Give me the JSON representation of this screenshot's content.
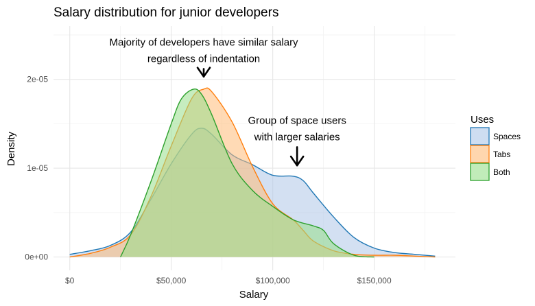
{
  "chart_data": {
    "type": "area",
    "title": "Salary distribution for junior developers",
    "xlabel": "Salary",
    "ylabel": "Density",
    "xlim": [
      -8000,
      190000
    ],
    "ylim": [
      -1.5e-06,
      2.6e-05
    ],
    "x_ticks": [
      {
        "value": 0,
        "label": "$0"
      },
      {
        "value": 50000,
        "label": "$50,000"
      },
      {
        "value": 100000,
        "label": "$100,000"
      },
      {
        "value": 150000,
        "label": "$150,000"
      }
    ],
    "y_ticks": [
      {
        "value": 0,
        "label": "0e+00"
      },
      {
        "value": 1e-05,
        "label": "1e-05"
      },
      {
        "value": 2e-05,
        "label": "2e-05"
      }
    ],
    "grid": true,
    "legend": {
      "title": "Uses",
      "position": "right",
      "entries": [
        "Spaces",
        "Tabs",
        "Both"
      ]
    },
    "colors": {
      "Spaces": {
        "line": "#1f77b4",
        "fill": "#aec7e8"
      },
      "Tabs": {
        "line": "#ff7f0e",
        "fill": "#ffbb78"
      },
      "Both": {
        "line": "#2ca02c",
        "fill": "#98df8a"
      }
    },
    "series": [
      {
        "name": "Spaces",
        "x": [
          0,
          10000,
          20000,
          30000,
          40000,
          50000,
          60000,
          65000,
          70000,
          80000,
          90000,
          100000,
          110000,
          115000,
          120000,
          130000,
          140000,
          150000,
          160000,
          170000,
          180000
        ],
        "y": [
          3e-07,
          7e-07,
          1.3e-06,
          2.8e-06,
          6.5e-06,
          1.05e-05,
          1.38e-05,
          1.45e-05,
          1.38e-05,
          1.15e-05,
          1.04e-05,
          9.2e-06,
          9.1e-06,
          8.6e-06,
          7.2e-06,
          4.5e-06,
          2.2e-06,
          1e-06,
          5e-07,
          3e-07,
          1e-07
        ]
      },
      {
        "name": "Tabs",
        "x": [
          0,
          10000,
          20000,
          30000,
          40000,
          50000,
          60000,
          66000,
          70000,
          80000,
          90000,
          100000,
          110000,
          115000,
          120000,
          130000,
          140000,
          150000,
          160000,
          170000,
          180000
        ],
        "y": [
          0.0,
          4e-07,
          1.1e-06,
          2.5e-06,
          6.8e-06,
          1.25e-05,
          1.78e-05,
          1.89e-05,
          1.86e-05,
          1.52e-05,
          1.02e-05,
          6e-06,
          4.2e-06,
          3e-06,
          1.8e-06,
          7e-07,
          3e-07,
          2e-07,
          2e-07,
          1e-07,
          0.0
        ]
      },
      {
        "name": "Both",
        "x": [
          25000,
          30000,
          40000,
          50000,
          55000,
          61000,
          65000,
          70000,
          80000,
          90000,
          100000,
          110000,
          120000,
          125000,
          130000,
          140000,
          150000
        ],
        "y": [
          0.0,
          2.5e-06,
          8.5e-06,
          1.5e-05,
          1.78e-05,
          1.89e-05,
          1.83e-05,
          1.6e-05,
          1.05e-05,
          7.5e-06,
          5.7e-06,
          4.2e-06,
          3.5e-06,
          3e-06,
          1.5e-06,
          2e-07,
          0.0
        ]
      }
    ],
    "annotations": [
      {
        "lines": [
          "Majority of developers have similar salary",
          "regardless of indentation"
        ],
        "x": 66000,
        "y": 2.38e-05,
        "arrow_to": [
          66000,
          2e-05
        ]
      },
      {
        "lines": [
          "Group of space users",
          "with larger salaries"
        ],
        "x": 112000,
        "y": 1.5e-05,
        "arrow_to": [
          112000,
          1e-05
        ]
      }
    ]
  }
}
